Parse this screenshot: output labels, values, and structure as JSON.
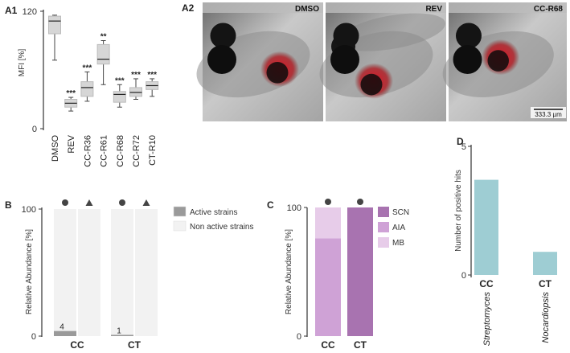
{
  "colors": {
    "box_fill": "#d6d6d6",
    "active": "#9a9a9a",
    "nonactive": "#f2f2f2",
    "scn": "#a873b0",
    "aia": "#cfa2d6",
    "mb": "#e7cce9",
    "hits": "#9ecdd3",
    "axis": "#333333"
  },
  "chart_data": [
    {
      "id": "A1",
      "panel_label": "A1",
      "type": "box",
      "ylabel": "MFI [%]",
      "ylim": [
        0,
        120
      ],
      "yticks": [
        0,
        120
      ],
      "categories": [
        "DMSO",
        "REV",
        "CC-R36",
        "CC-R61",
        "CC-R68",
        "CC-R72",
        "CT-R10"
      ],
      "boxes": [
        {
          "min": 70,
          "q1": 97,
          "median": 110,
          "q3": 115,
          "max": 116,
          "sig": ""
        },
        {
          "min": 18,
          "q1": 22,
          "median": 26,
          "q3": 30,
          "max": 32,
          "sig": "***"
        },
        {
          "min": 28,
          "q1": 33,
          "median": 42,
          "q3": 48,
          "max": 58,
          "sig": "***"
        },
        {
          "min": 45,
          "q1": 66,
          "median": 71,
          "q3": 86,
          "max": 90,
          "sig": "**"
        },
        {
          "min": 22,
          "q1": 27,
          "median": 35,
          "q3": 38,
          "max": 45,
          "sig": "***"
        },
        {
          "min": 30,
          "q1": 33,
          "median": 37,
          "q3": 42,
          "max": 51,
          "sig": "***"
        },
        {
          "min": 33,
          "q1": 40,
          "median": 44,
          "q3": 48,
          "max": 51,
          "sig": "***"
        }
      ]
    },
    {
      "id": "B",
      "panel_label": "B",
      "type": "stacked-bar",
      "ylabel": "Relative Abundance [%]",
      "ylim": [
        0,
        100
      ],
      "yticks": [
        0,
        100
      ],
      "groups": [
        {
          "label": "CC",
          "bars": [
            {
              "marker": "circle",
              "active": 4,
              "value_label": "4"
            },
            {
              "marker": "triangle",
              "active": 0,
              "value_label": ""
            }
          ]
        },
        {
          "label": "CT",
          "bars": [
            {
              "marker": "circle",
              "active": 1,
              "value_label": "1"
            },
            {
              "marker": "triangle",
              "active": 0,
              "value_label": ""
            }
          ]
        }
      ],
      "legend": [
        {
          "name": "Active strains",
          "color": "#9a9a9a"
        },
        {
          "name": "Non active strains",
          "color": "#f2f2f2"
        }
      ]
    },
    {
      "id": "C",
      "panel_label": "C",
      "type": "stacked-bar",
      "ylabel": "Relative Abundance [%]",
      "ylim": [
        0,
        100
      ],
      "yticks": [
        0,
        100
      ],
      "categories": [
        "CC",
        "CT"
      ],
      "series": [
        {
          "name": "SCN",
          "values": [
            0,
            100
          ],
          "color": "#a873b0"
        },
        {
          "name": "AIA",
          "values": [
            76,
            0
          ],
          "color": "#cfa2d6"
        },
        {
          "name": "MB",
          "values": [
            24,
            0
          ],
          "color": "#e7cce9"
        }
      ]
    },
    {
      "id": "D",
      "panel_label": "D",
      "type": "bar",
      "ylabel": "Number of positive hits",
      "ylim": [
        0,
        5
      ],
      "yticks": [
        0,
        5
      ],
      "categories": [
        "CC",
        "CT"
      ],
      "sublabels": [
        "Streptomyces",
        "Nocardiopsis"
      ],
      "values": [
        3.7,
        0.9
      ]
    }
  ],
  "photos": {
    "panel_label": "A2",
    "labels": [
      "DMSO",
      "REV",
      "CC-R68"
    ],
    "scale_bar": "333.3 µm"
  }
}
